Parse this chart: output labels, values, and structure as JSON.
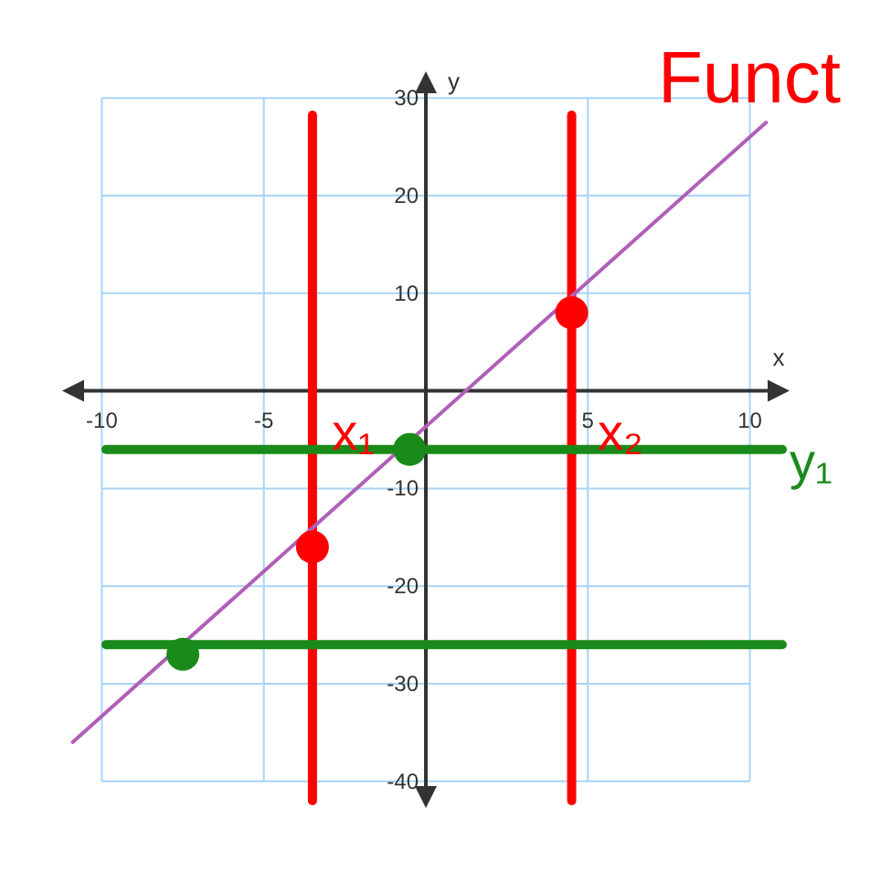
{
  "chart_data": {
    "type": "line",
    "xlabel": "x",
    "ylabel": "y",
    "xlim": [
      -11,
      11
    ],
    "ylim": [
      -42,
      32
    ],
    "xticks": [
      -10,
      -5,
      {
        "value": 0,
        "label": null
      },
      5,
      10
    ],
    "yticks": [
      -40,
      -30,
      -20,
      -10,
      {
        "value": 0,
        "label": null
      },
      10,
      20,
      30
    ],
    "grid": true,
    "marker": "none",
    "line_style": "solid",
    "series": [
      {
        "color": "#b05fb8",
        "x": [
          -10.9,
          10.5
        ],
        "values": [
          -36,
          27.5
        ]
      },
      {
        "type": "scatter",
        "color": "#ff0000",
        "x": [
          -3.5,
          4.5
        ],
        "values": [
          -16,
          8
        ],
        "marker": "circle"
      },
      {
        "type": "scatter",
        "color": "#1a8a1a",
        "x": [
          -0.5,
          -7.5
        ],
        "values": [
          -6,
          -27
        ],
        "marker": "circle"
      }
    ],
    "ref_lines": [
      {
        "axis": "x",
        "value": -3.5,
        "color": "#ff0000"
      },
      {
        "axis": "x",
        "value": 4.5,
        "color": "#ff0000"
      },
      {
        "axis": "y",
        "value": -6,
        "color": "#1a8a1a"
      },
      {
        "axis": "y",
        "value": -26,
        "color": "#1a8a1a"
      }
    ],
    "annotations": [
      "Funct",
      "x₁",
      "x₂",
      "y₁"
    ]
  }
}
